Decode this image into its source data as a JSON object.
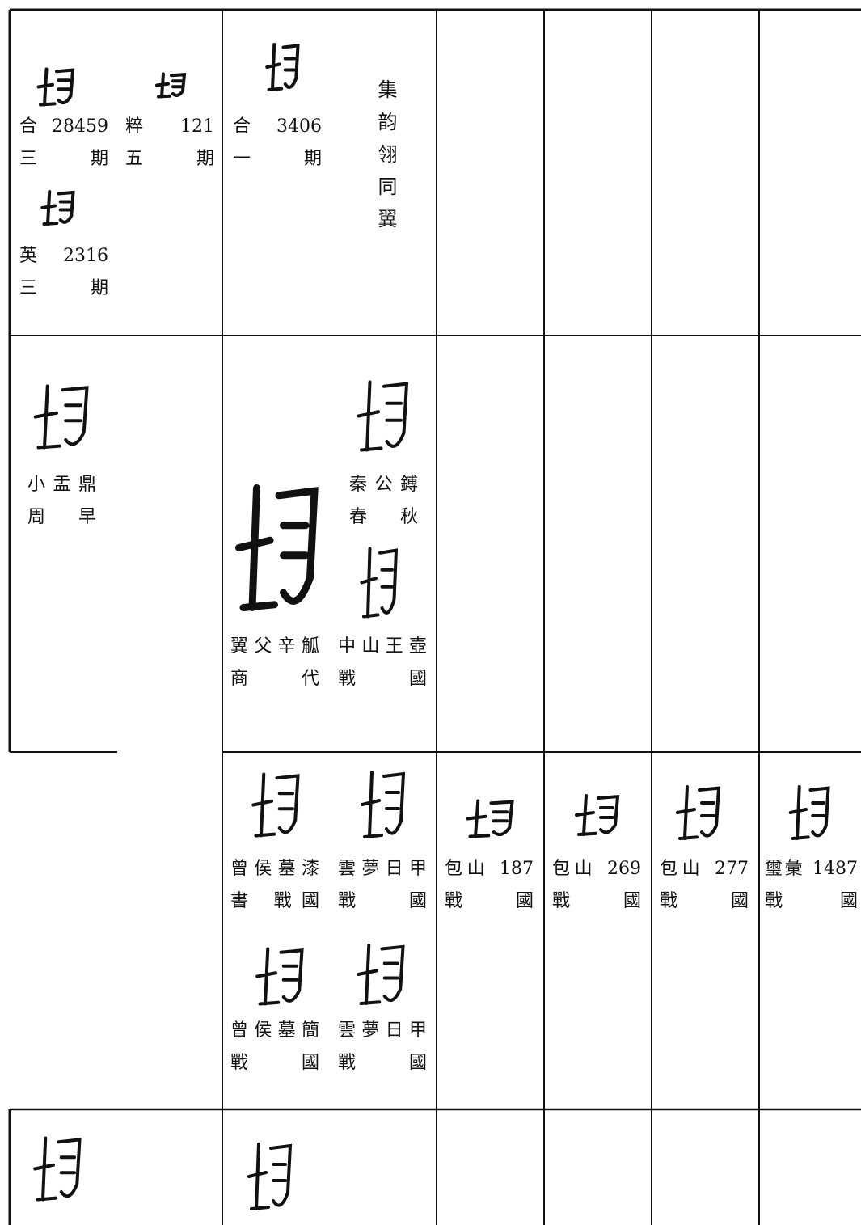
{
  "table": {
    "rows": [
      {
        "cells": [
          {
            "entries": [
              {
                "lines": [
                  "合 28459",
                  "三 期"
                ]
              },
              {
                "lines": [
                  "粹 121",
                  "五 期"
                ]
              },
              {
                "lines": [
                  "英 2316",
                  "三 期"
                ]
              }
            ]
          },
          {
            "entries": [
              {
                "lines": [
                  "合 3406",
                  "一 期"
                ]
              }
            ],
            "note": "集韵翎同翼"
          },
          {
            "entries": []
          },
          {
            "entries": []
          },
          {
            "entries": []
          },
          {
            "entries": []
          }
        ]
      },
      {
        "cells": [
          {
            "entries": [
              {
                "lines": [
                  "小盂鼎",
                  "周 早"
                ]
              }
            ]
          },
          {
            "entries": [
              {
                "lines": [
                  "秦公鎛",
                  "春 秋"
                ]
              },
              {
                "lines": [
                  "翼父辛觚",
                  "商 代"
                ]
              },
              {
                "lines": [
                  "中山王壺",
                  "戰 國"
                ]
              }
            ]
          },
          {
            "entries": []
          },
          {
            "entries": []
          },
          {
            "entries": []
          },
          {
            "entries": []
          }
        ]
      },
      {
        "cells": [
          {
            "entries": []
          },
          {
            "entries": [
              {
                "lines": [
                  "曾侯墓漆",
                  "書 戰國"
                ]
              },
              {
                "lines": [
                  "雲夢日甲",
                  "戰 國"
                ]
              },
              {
                "lines": [
                  "曾侯墓簡",
                  "戰 國"
                ]
              },
              {
                "lines": [
                  "雲夢日甲",
                  "戰 國"
                ]
              }
            ]
          },
          {
            "entries": [
              {
                "lines": [
                  "包山 187",
                  "戰 國"
                ]
              }
            ]
          },
          {
            "entries": [
              {
                "lines": [
                  "包山 269",
                  "戰 國"
                ]
              }
            ]
          },
          {
            "entries": [
              {
                "lines": [
                  "包山 277",
                  "戰 國"
                ]
              }
            ]
          },
          {
            "entries": [
              {
                "lines": [
                  "璽彙 1487",
                  "戰 國"
                ]
              }
            ]
          }
        ]
      },
      {
        "cells": [
          {
            "entries": []
          },
          {
            "entries": []
          },
          {
            "entries": []
          },
          {
            "entries": []
          },
          {
            "entries": []
          },
          {
            "entries": []
          }
        ]
      }
    ]
  }
}
